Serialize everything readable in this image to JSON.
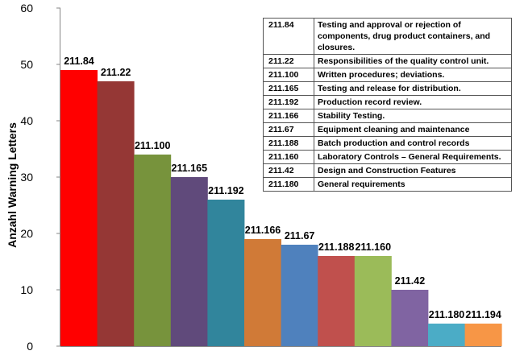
{
  "chart_data": {
    "type": "bar",
    "ylabel": "Anzahl Warning Letters",
    "ylim": [
      0,
      60
    ],
    "yticks": [
      0,
      10,
      20,
      30,
      40,
      50,
      60
    ],
    "grid": false,
    "categories": [
      "211.84",
      "211.22",
      "211.100",
      "211.165",
      "211.192",
      "211.166",
      "211.67",
      "211.188",
      "211.160",
      "211.42",
      "211.180",
      "211.194"
    ],
    "values": [
      49,
      47,
      34,
      30,
      26,
      19,
      18,
      16,
      16,
      10,
      4,
      4
    ],
    "colors": [
      "#ff0000",
      "#953735",
      "#77933c",
      "#604a7b",
      "#31859c",
      "#d07a37",
      "#4f81bd",
      "#c0504d",
      "#9bbb59",
      "#8064a2",
      "#4bacc6",
      "#f79646"
    ]
  },
  "legend_table": [
    {
      "code": "211.84",
      "description": "Testing and approval or rejection of components, drug product containers, and closures."
    },
    {
      "code": "211.22",
      "description": "Responsibilities of the quality control unit."
    },
    {
      "code": "211.100",
      "description": "Written procedures; deviations."
    },
    {
      "code": "211.165",
      "description": "Testing and release for distribution."
    },
    {
      "code": "211.192",
      "description": "Production record review."
    },
    {
      "code": "211.166",
      "description": "Stability Testing."
    },
    {
      "code": "211.67",
      "description": "Equipment cleaning and maintenance"
    },
    {
      "code": "211.188",
      "description": "Batch production and control records"
    },
    {
      "code": "211.160",
      "description": "Laboratory Controls – General Requirements."
    },
    {
      "code": "211.42",
      "description": "Design and Construction Features"
    },
    {
      "code": "211.180",
      "description": "General requirements"
    }
  ]
}
